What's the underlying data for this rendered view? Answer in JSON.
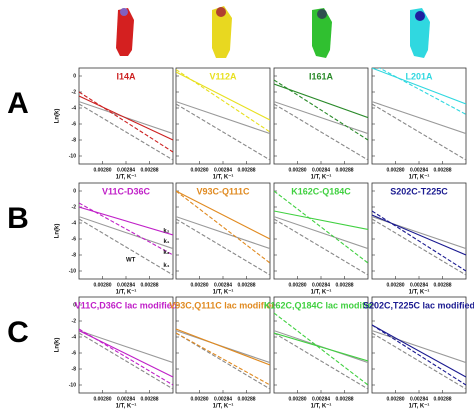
{
  "row_labels": [
    "A",
    "B",
    "C"
  ],
  "chart_data": [
    {
      "type": "line",
      "title": "I14A",
      "ylabel": "Ln(k)",
      "xlabel": "1/T, K⁻¹",
      "x": [
        0.00276,
        0.00292
      ],
      "xlim": [
        0.00276,
        0.00292
      ],
      "ylim": [
        -11,
        1
      ],
      "xticks": [
        {
          "value": 0.0028,
          "label": "0.00280"
        },
        0.00284,
        0.00288
      ],
      "yticks": [
        0,
        -2,
        -4,
        -6,
        -8,
        -10
      ],
      "series": [
        {
          "color": "#999999",
          "dash": false,
          "values": [
            -3.2,
            -7.2
          ]
        },
        {
          "color": "#888888",
          "dash": true,
          "values": [
            -3.5,
            -10.5
          ]
        },
        {
          "color": "#cc2020",
          "dash": false,
          "values": [
            -2.5,
            -8
          ]
        },
        {
          "color": "#cc2020",
          "dash": true,
          "values": [
            -2,
            -9.5
          ]
        }
      ]
    },
    {
      "type": "line",
      "title": "V112A",
      "xlabel": "1/T, K⁻¹",
      "x": [
        0.00276,
        0.00292
      ],
      "xlim": [
        0.00276,
        0.00292
      ],
      "ylim": [
        -11,
        1
      ],
      "xticks": [
        {
          "value": 0.0028,
          "label": "0.00280"
        },
        0.00284,
        0.00288
      ],
      "yticks": [
        0,
        -2,
        -4,
        -6,
        -8,
        -10
      ],
      "series": [
        {
          "color": "#999999",
          "dash": false,
          "values": [
            -3.2,
            -7.2
          ]
        },
        {
          "color": "#888888",
          "dash": true,
          "values": [
            -3.5,
            -10.5
          ]
        },
        {
          "color": "#e8e020",
          "dash": false,
          "values": [
            0.5,
            -5.5
          ]
        },
        {
          "color": "#e8e020",
          "dash": true,
          "values": [
            0.8,
            -7
          ]
        }
      ]
    },
    {
      "type": "line",
      "title": "I161A",
      "xlabel": "1/T, K⁻¹",
      "x": [
        0.00276,
        0.00292
      ],
      "xlim": [
        0.00276,
        0.00292
      ],
      "ylim": [
        -11,
        1
      ],
      "xticks": [
        {
          "value": 0.0028,
          "label": "0.00280"
        },
        0.00284,
        0.00288
      ],
      "yticks": [
        0,
        -2,
        -4,
        -6,
        -8,
        -10
      ],
      "series": [
        {
          "color": "#999999",
          "dash": false,
          "values": [
            -3.2,
            -7.2
          ]
        },
        {
          "color": "#888888",
          "dash": true,
          "values": [
            -3.5,
            -10.5
          ]
        },
        {
          "color": "#2a8a2a",
          "dash": false,
          "values": [
            -1,
            -5.2
          ]
        },
        {
          "color": "#2a8a2a",
          "dash": true,
          "values": [
            -0.5,
            -8
          ]
        }
      ]
    },
    {
      "type": "line",
      "title": "L201A",
      "xlabel": "1/T, K⁻¹",
      "x": [
        0.00276,
        0.00292
      ],
      "xlim": [
        0.00276,
        0.00292
      ],
      "ylim": [
        -11,
        1
      ],
      "xticks": [
        {
          "value": 0.0028,
          "label": "0.00280"
        },
        0.00284,
        0.00288
      ],
      "yticks": [
        0,
        -2,
        -4,
        -6,
        -8,
        -10
      ],
      "series": [
        {
          "color": "#999999",
          "dash": false,
          "values": [
            -3.2,
            -7.2
          ]
        },
        {
          "color": "#888888",
          "dash": true,
          "values": [
            -3.5,
            -10.5
          ]
        },
        {
          "color": "#30d8e0",
          "dash": false,
          "values": [
            1,
            -3.5
          ]
        },
        {
          "color": "#30d8e0",
          "dash": true,
          "values": [
            1.5,
            -4.8
          ]
        }
      ]
    },
    {
      "type": "line",
      "title": "V11C-D36C",
      "ylabel": "Ln(k)",
      "xlabel": "1/T, K⁻¹",
      "annotations": [
        "k₂",
        "k₁",
        "WT",
        "k₃",
        "k₄"
      ],
      "x": [
        0.00276,
        0.00292
      ],
      "xlim": [
        0.00276,
        0.00292
      ],
      "ylim": [
        -11,
        1
      ],
      "xticks": [
        {
          "value": 0.0028,
          "label": "0.00280"
        },
        0.00284,
        0.00288
      ],
      "yticks": [
        0,
        -2,
        -4,
        -6,
        -8,
        -10
      ],
      "series": [
        {
          "color": "#999999",
          "dash": false,
          "values": [
            -3.2,
            -7.2
          ]
        },
        {
          "color": "#888888",
          "dash": true,
          "values": [
            -3.5,
            -10.5
          ]
        },
        {
          "color": "#c020c8",
          "dash": false,
          "values": [
            -2,
            -5.5
          ]
        },
        {
          "color": "#c020c8",
          "dash": true,
          "values": [
            -1.5,
            -8
          ]
        }
      ]
    },
    {
      "type": "line",
      "title": "V93C-Q111C",
      "xlabel": "1/T, K⁻¹",
      "x": [
        0.00276,
        0.00292
      ],
      "xlim": [
        0.00276,
        0.00292
      ],
      "ylim": [
        -11,
        1
      ],
      "xticks": [
        {
          "value": 0.0028,
          "label": "0.00280"
        },
        0.00284,
        0.00288
      ],
      "yticks": [
        0,
        -2,
        -4,
        -6,
        -8,
        -10
      ],
      "series": [
        {
          "color": "#999999",
          "dash": false,
          "values": [
            -3.2,
            -7.2
          ]
        },
        {
          "color": "#888888",
          "dash": true,
          "values": [
            -3.5,
            -10.5
          ]
        },
        {
          "color": "#e08a20",
          "dash": false,
          "values": [
            0,
            -6
          ]
        },
        {
          "color": "#e08a20",
          "dash": true,
          "values": [
            0,
            -9
          ]
        }
      ]
    },
    {
      "type": "line",
      "title": "K162C-Q184C",
      "xlabel": "1/T, K⁻¹",
      "x": [
        0.00276,
        0.00292
      ],
      "xlim": [
        0.00276,
        0.00292
      ],
      "ylim": [
        -11,
        1
      ],
      "xticks": [
        {
          "value": 0.0028,
          "label": "0.00280"
        },
        0.00284,
        0.00288
      ],
      "yticks": [
        0,
        -2,
        -4,
        -6,
        -8,
        -10
      ],
      "series": [
        {
          "color": "#999999",
          "dash": false,
          "values": [
            -3.2,
            -7.2
          ]
        },
        {
          "color": "#888888",
          "dash": true,
          "values": [
            -3.5,
            -10.5
          ]
        },
        {
          "color": "#40d040",
          "dash": false,
          "values": [
            -2.5,
            -4.8
          ]
        },
        {
          "color": "#40d040",
          "dash": true,
          "values": [
            0,
            -9
          ]
        }
      ]
    },
    {
      "type": "line",
      "title": "S202C-T225C",
      "xlabel": "1/T, K⁻¹",
      "x": [
        0.00276,
        0.00292
      ],
      "xlim": [
        0.00276,
        0.00292
      ],
      "ylim": [
        -11,
        1
      ],
      "xticks": [
        {
          "value": 0.0028,
          "label": "0.00280"
        },
        0.00284,
        0.00288
      ],
      "yticks": [
        0,
        -2,
        -4,
        -6,
        -8,
        -10
      ],
      "series": [
        {
          "color": "#999999",
          "dash": false,
          "values": [
            -3.2,
            -7.2
          ]
        },
        {
          "color": "#888888",
          "dash": true,
          "values": [
            -3.5,
            -10.5
          ]
        },
        {
          "color": "#1a1a90",
          "dash": false,
          "values": [
            -3,
            -8
          ]
        },
        {
          "color": "#1a1a90",
          "dash": true,
          "values": [
            -2.5,
            -10
          ]
        }
      ]
    },
    {
      "type": "line",
      "title": "V11C,D36C lac modified",
      "ylabel": "Ln(k)",
      "xlabel": "1/T, K⁻¹",
      "x": [
        0.00276,
        0.00292
      ],
      "xlim": [
        0.00276,
        0.00292
      ],
      "ylim": [
        -11,
        1
      ],
      "xticks": [
        {
          "value": 0.0028,
          "label": "0.00280"
        },
        0.00284,
        0.00288
      ],
      "yticks": [
        0,
        -2,
        -4,
        -6,
        -8,
        -10
      ],
      "series": [
        {
          "color": "#999999",
          "dash": false,
          "values": [
            -3.2,
            -7.2
          ]
        },
        {
          "color": "#888888",
          "dash": true,
          "values": [
            -3.5,
            -10.5
          ]
        },
        {
          "color": "#c020c8",
          "dash": false,
          "values": [
            -3.2,
            -9
          ]
        },
        {
          "color": "#c020c8",
          "dash": true,
          "values": [
            -3,
            -10
          ]
        }
      ]
    },
    {
      "type": "line",
      "title": "V93C,Q111C lac modified",
      "xlabel": "1/T, K⁻¹",
      "x": [
        0.00276,
        0.00292
      ],
      "xlim": [
        0.00276,
        0.00292
      ],
      "ylim": [
        -11,
        1
      ],
      "xticks": [
        {
          "value": 0.0028,
          "label": "0.00280"
        },
        0.00284,
        0.00288
      ],
      "yticks": [
        0,
        -2,
        -4,
        -6,
        -8,
        -10
      ],
      "series": [
        {
          "color": "#999999",
          "dash": false,
          "values": [
            -3.2,
            -7.2
          ]
        },
        {
          "color": "#888888",
          "dash": true,
          "values": [
            -3.5,
            -10.5
          ]
        },
        {
          "color": "#e08a20",
          "dash": false,
          "values": [
            -3,
            -7.5
          ]
        },
        {
          "color": "#e08a20",
          "dash": true,
          "values": [
            -3.5,
            -10
          ]
        }
      ]
    },
    {
      "type": "line",
      "title": "K162C,Q184C lac modified",
      "xlabel": "1/T, K⁻¹",
      "x": [
        0.00276,
        0.00292
      ],
      "xlim": [
        0.00276,
        0.00292
      ],
      "ylim": [
        -11,
        1
      ],
      "xticks": [
        {
          "value": 0.0028,
          "label": "0.00280"
        },
        0.00284,
        0.00288
      ],
      "yticks": [
        0,
        -2,
        -4,
        -6,
        -8,
        -10
      ],
      "series": [
        {
          "color": "#999999",
          "dash": false,
          "values": [
            -3.2,
            -7.2
          ]
        },
        {
          "color": "#888888",
          "dash": true,
          "values": [
            -3.5,
            -10.5
          ]
        },
        {
          "color": "#40d040",
          "dash": false,
          "values": [
            -3.5,
            -7
          ]
        },
        {
          "color": "#40d040",
          "dash": true,
          "values": [
            -1,
            -10
          ]
        }
      ]
    },
    {
      "type": "line",
      "title": "S202C,T225C lac modified",
      "xlabel": "1/T, K⁻¹",
      "x": [
        0.00276,
        0.00292
      ],
      "xlim": [
        0.00276,
        0.00292
      ],
      "ylim": [
        -11,
        1
      ],
      "xticks": [
        {
          "value": 0.0028,
          "label": "0.00280"
        },
        0.00284,
        0.00288
      ],
      "yticks": [
        0,
        -2,
        -4,
        -6,
        -8,
        -10
      ],
      "series": [
        {
          "color": "#999999",
          "dash": false,
          "values": [
            -3.2,
            -7.2
          ]
        },
        {
          "color": "#888888",
          "dash": true,
          "values": [
            -3.5,
            -10.5
          ]
        },
        {
          "color": "#1a1a90",
          "dash": false,
          "values": [
            -2.5,
            -9
          ]
        },
        {
          "color": "#1a1a90",
          "dash": true,
          "values": [
            -2.5,
            -10
          ]
        }
      ]
    }
  ]
}
